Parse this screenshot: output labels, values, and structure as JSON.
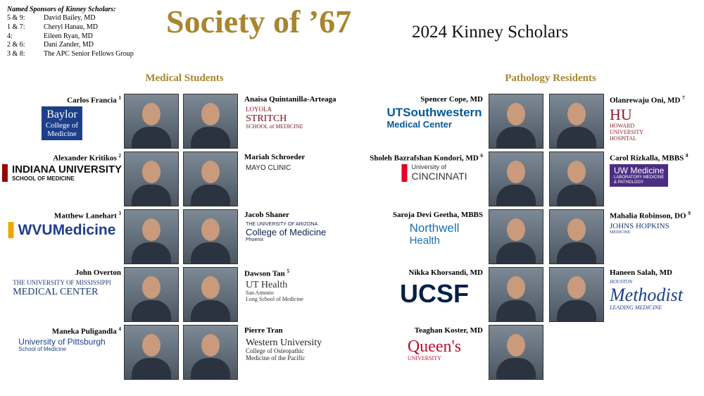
{
  "header": {
    "sponsors_title": "Named Sponsors of Kinney Scholars:",
    "sponsors": [
      {
        "nums": "5 & 9:",
        "name": "David Bailey, MD"
      },
      {
        "nums": "1 & 7:",
        "name": "Cheryl Hanau, MD"
      },
      {
        "nums": "4:",
        "name": "Eileen Ryan, MD"
      },
      {
        "nums": "2 & 6:",
        "name": "Dani Zander, MD"
      },
      {
        "nums": "3 & 8:",
        "name": "The APC Senior Fellows Group"
      }
    ],
    "society": "Society of ’67",
    "title": "2024 Kinney Scholars"
  },
  "sections": [
    {
      "heading": "Medical Students",
      "columns": [
        [
          {
            "name": "Carlos Francia",
            "sup": "1",
            "logo": [
              "Baylor",
              "College of",
              "Medicine"
            ]
          },
          {
            "name": "Alexander Kritikos",
            "sup": "2",
            "logo": [
              "INDIANA UNIVERSITY",
              "SCHOOL OF MEDICINE"
            ]
          },
          {
            "name": "Matthew Lanehart",
            "sup": "3",
            "logo": [
              "WVUMedicine"
            ]
          },
          {
            "name": "John Overton",
            "logo": [
              "THE UNIVERSITY OF MISSISSIPPI",
              "MEDICAL CENTER"
            ]
          },
          {
            "name": "Maneka Puligandla",
            "sup": "4",
            "logo": [
              "University of Pittsburgh",
              "School of Medicine"
            ]
          }
        ],
        [
          {
            "name": "Anaisa Quintanilla-Arteaga",
            "logo": [
              "LOYOLA",
              "STRITCH",
              "SCHOOL of MEDICINE"
            ]
          },
          {
            "name": "Mariah Schroeder",
            "logo": [
              "MAYO CLINIC"
            ]
          },
          {
            "name": "Jacob Shaner",
            "logo": [
              "THE UNIVERSITY OF ARIZONA",
              "College of Medicine",
              "Phoenix"
            ]
          },
          {
            "name": "Dawson Tan",
            "sup": "5",
            "logo": [
              "UT Health",
              "San Antonio",
              "Long School of Medicine"
            ]
          },
          {
            "name": "Pierre Tran",
            "logo": [
              "Western University",
              "College of Osteopathic",
              "Medicine of the Pacific"
            ]
          }
        ]
      ]
    },
    {
      "heading": "Pathology Residents",
      "columns": [
        [
          {
            "name": "Spencer Cope, MD",
            "logo": [
              "UTSouthwestern",
              "Medical Center"
            ]
          },
          {
            "name": "Sholeh Bazrafshan Kondori, MD",
            "sup": "6",
            "logo": [
              "University of",
              "CINCINNATI"
            ]
          },
          {
            "name": "Saroja Devi Geetha, MBBS",
            "logo": [
              "Northwell",
              "Health"
            ]
          },
          {
            "name": "Nikka Khorsandi, MD",
            "logo": [
              "UCSF"
            ]
          },
          {
            "name": "Teaghan Koster, MD",
            "logo": [
              "Queen's",
              "UNIVERSITY"
            ]
          }
        ],
        [
          {
            "name": "Olanrewaju Oni, MD",
            "sup": "7",
            "logo": [
              "HU",
              "HOWARD",
              "UNIVERSITY",
              "HOSPITAL"
            ]
          },
          {
            "name": "Carol Rizkalla, MBBS",
            "sup": "8",
            "logo": [
              "UW Medicine",
              "LABORATORY MEDICINE",
              "& PATHOLOGY"
            ]
          },
          {
            "name": "Mahalia Robinson, DO",
            "sup": "9",
            "logo": [
              "JOHNS HOPKINS",
              "MEDICINE"
            ]
          },
          {
            "name": "Haneen Salah, MD",
            "logo": [
              "HOUSTON",
              "Methodist",
              "LEADING MEDICINE"
            ]
          }
        ]
      ]
    }
  ]
}
